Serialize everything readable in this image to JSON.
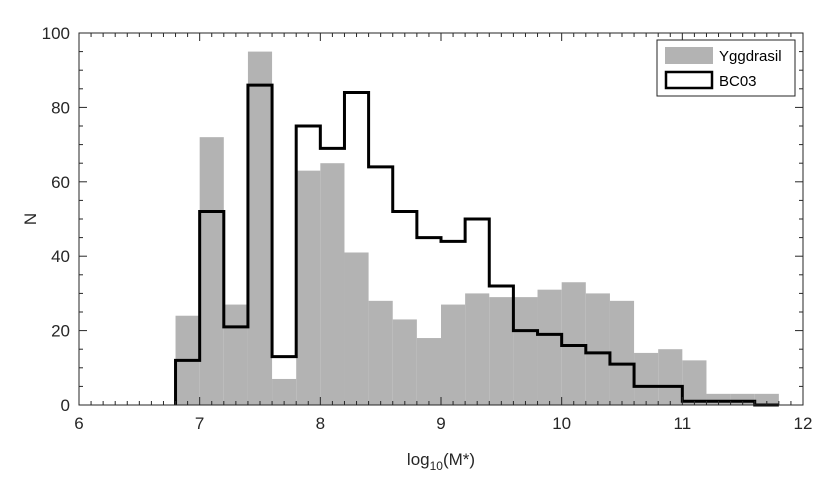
{
  "chart_data": {
    "type": "bar",
    "xlabel_main": "log",
    "xlabel_sub": "10",
    "xlabel_tail": "(M*)",
    "ylabel": "N",
    "xlim": [
      6,
      12
    ],
    "ylim": [
      0,
      100
    ],
    "xticks": [
      "6",
      "7",
      "8",
      "9",
      "10",
      "11",
      "12"
    ],
    "yticks": [
      "0",
      "20",
      "40",
      "60",
      "80",
      "100"
    ],
    "bin_width": 0.2,
    "bin_centers": [
      6.9,
      7.1,
      7.3,
      7.5,
      7.7,
      7.9,
      8.1,
      8.3,
      8.5,
      8.7,
      8.9,
      9.1,
      9.3,
      9.5,
      9.7,
      9.9,
      10.1,
      10.3,
      10.5,
      10.7,
      10.9,
      11.1,
      11.3,
      11.5,
      11.7
    ],
    "series": [
      {
        "name": "Yggdrasil",
        "style": "filled",
        "color": "#b3b3b3",
        "values": [
          24,
          72,
          27,
          95,
          7,
          63,
          65,
          41,
          28,
          23,
          18,
          27,
          30,
          29,
          29,
          31,
          33,
          30,
          28,
          14,
          15,
          12,
          3,
          3,
          3
        ]
      },
      {
        "name": "BC03",
        "style": "step",
        "color": "#000000",
        "values": [
          12,
          52,
          21,
          86,
          13,
          75,
          69,
          84,
          64,
          52,
          45,
          44,
          50,
          32,
          20,
          19,
          16,
          14,
          11,
          5,
          5,
          1,
          1,
          1,
          0
        ]
      }
    ],
    "legend_position": "top-right",
    "grid": false
  }
}
